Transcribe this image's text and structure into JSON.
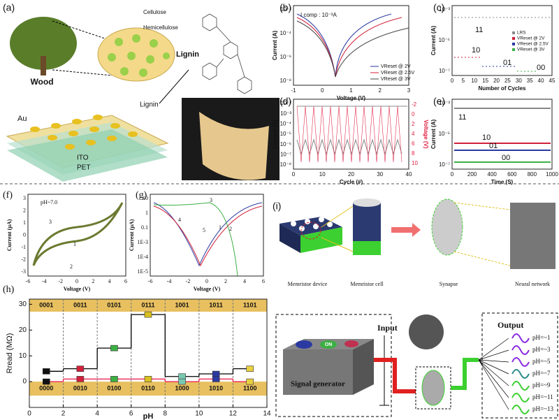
{
  "figure": {
    "a": {
      "label": "(a)",
      "wood": "Wood",
      "cellulose": "Cellulose",
      "hemicellulose": "Hemicellulose",
      "lignin": "Lignin",
      "lignin2": "Lignin",
      "au": "Au",
      "ito": "ITO",
      "pet": "PET"
    },
    "b": {
      "label": "(b)",
      "compliance": "I comp : 10⁻³A",
      "legend": [
        "VReset @ 2V",
        "VReset @ 2.5V",
        "VReset @ 3V"
      ],
      "xlabel": "Voltage (V)",
      "ylabel": "Current (A)",
      "xticks": [
        "-1",
        "0",
        "1",
        "2",
        "3"
      ],
      "yticks": [
        "10⁻²",
        "10⁻⁴",
        "10⁻⁶",
        "10⁻⁸"
      ]
    },
    "c": {
      "label": "(c)",
      "legend": [
        "LRS",
        "VReset @ 2V",
        "VReset @ 2.5V",
        "VReset @ 3V"
      ],
      "states": [
        "11",
        "10",
        "01",
        "00"
      ],
      "xlabel": "Number of Cycles",
      "ylabel": "Current (A)",
      "xticks": [
        "0",
        "5",
        "10",
        "15",
        "20",
        "25",
        "30",
        "35",
        "40",
        "45"
      ],
      "yticks": [
        "10⁻³",
        "10⁻⁵",
        "10⁻⁷"
      ]
    },
    "d": {
      "label": "(d)",
      "xlabel": "Cycle (#)",
      "ylabel": "Current (A)",
      "y2label": "Voltage (V)",
      "xticks": [
        "0",
        "10",
        "20",
        "30",
        "40"
      ],
      "yticks": [
        "10⁻²",
        "10⁻³",
        "10⁻⁴",
        "10⁻⁵",
        "10⁻⁶",
        "10⁻⁷",
        "10⁻⁸"
      ],
      "y2ticks": [
        "-2",
        "0",
        "2",
        "4",
        "6",
        "8",
        "10"
      ]
    },
    "e": {
      "label": "(e)",
      "states": [
        "11",
        "10",
        "01",
        "00"
      ],
      "xlabel": "Time (S)",
      "ylabel": "Current (A)",
      "xticks": [
        "0",
        "200",
        "400",
        "600",
        "800",
        "1000"
      ],
      "yticks": [
        "10⁻³",
        "10⁻⁵",
        "10⁻⁷"
      ]
    },
    "f": {
      "label": "(f)",
      "legend": "pH~7.0",
      "arrows": [
        "1",
        "2",
        "3"
      ],
      "xlabel": "Voltage (V)",
      "ylabel": "Current (μA)",
      "xticks": [
        "-6",
        "-4",
        "-2",
        "0",
        "2",
        "4",
        "6"
      ],
      "yticks": [
        "3",
        "2",
        "1",
        "0",
        "-1",
        "-2",
        "-3"
      ]
    },
    "g": {
      "label": "(g)",
      "arrows": [
        "1",
        "2",
        "3",
        "4",
        "5"
      ],
      "xlabel": "Voltage (V)",
      "ylabel": "Current (μA)",
      "xticks": [
        "-6",
        "-4",
        "-2",
        "0",
        "2",
        "4",
        "6"
      ],
      "yticks": [
        "10",
        "1",
        "0.1",
        "1E-3",
        "1E-4",
        "1E-5"
      ]
    },
    "i": {
      "label": "(i)",
      "device": "Memristor device",
      "cell": "Memristor cell",
      "synapse": "Synapse",
      "network": "Neural network"
    },
    "flow": {
      "signal": "Signal generator",
      "on": "ON",
      "input": "Input",
      "output": "Output",
      "ph": [
        "pH=~1",
        "pH=~3",
        "pH=~5",
        "pH=~7",
        "pH=~9",
        "pH=~11",
        "pH=~13"
      ]
    }
  },
  "chart_data": {
    "type": "step",
    "label": "(h)",
    "xlabel": "pH",
    "ylabel": "Rread (MΩ)",
    "x": [
      1,
      3,
      5,
      7,
      9,
      11,
      13
    ],
    "series": [
      {
        "color": "#000000",
        "values": [
          4,
          5,
          13,
          26,
          2,
          3,
          5
        ]
      },
      {
        "color": "#e8174f",
        "values": [
          0,
          1,
          1,
          1,
          0,
          1,
          0
        ]
      }
    ],
    "marker_colors": [
      "#111111",
      "#d0203a",
      "#3cb043",
      "#d8c020",
      "#79c9b0",
      "#2b3aa0",
      "#e8d040"
    ],
    "upper_codes": [
      "0001",
      "0011",
      "0101",
      "0111",
      "1001",
      "1011",
      "1101"
    ],
    "lower_codes": [
      "0000",
      "0010",
      "0100",
      "0110",
      "1000",
      "1010",
      "1100"
    ],
    "xlim": [
      0,
      14
    ],
    "xticks": [
      0,
      2,
      4,
      6,
      8,
      10,
      12,
      14
    ],
    "ylim": [
      -10,
      32
    ],
    "yticks": [
      0,
      10,
      20,
      30
    ]
  }
}
